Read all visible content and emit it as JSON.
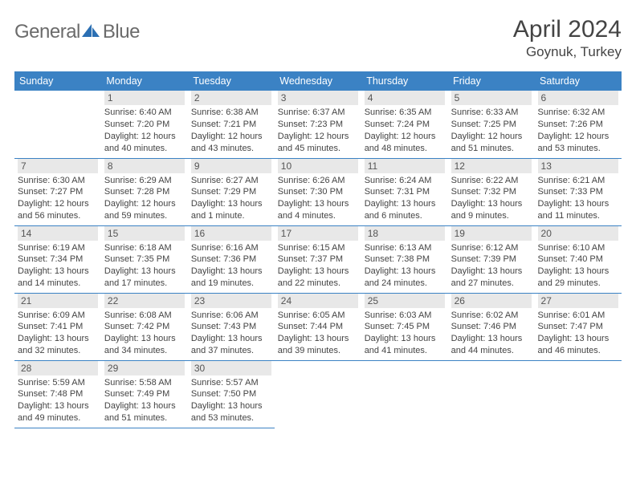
{
  "brand": {
    "word1": "General",
    "word2": "Blue",
    "accent_color": "#2b6fb3",
    "text_color": "#6b6b6b"
  },
  "title": {
    "month_year": "April 2024",
    "location": "Goynuk, Turkey",
    "color": "#444444"
  },
  "colors": {
    "header_bg": "#3b82c4",
    "header_fg": "#ffffff",
    "daybar_bg": "#e8e8e8",
    "daybar_fg": "#555555",
    "cell_border": "#3b82c4",
    "body_text": "#444444"
  },
  "weekdays": [
    "Sunday",
    "Monday",
    "Tuesday",
    "Wednesday",
    "Thursday",
    "Friday",
    "Saturday"
  ],
  "weeks": [
    [
      null,
      {
        "d": "1",
        "sr": "6:40 AM",
        "ss": "7:20 PM",
        "dl": "12 hours and 40 minutes."
      },
      {
        "d": "2",
        "sr": "6:38 AM",
        "ss": "7:21 PM",
        "dl": "12 hours and 43 minutes."
      },
      {
        "d": "3",
        "sr": "6:37 AM",
        "ss": "7:23 PM",
        "dl": "12 hours and 45 minutes."
      },
      {
        "d": "4",
        "sr": "6:35 AM",
        "ss": "7:24 PM",
        "dl": "12 hours and 48 minutes."
      },
      {
        "d": "5",
        "sr": "6:33 AM",
        "ss": "7:25 PM",
        "dl": "12 hours and 51 minutes."
      },
      {
        "d": "6",
        "sr": "6:32 AM",
        "ss": "7:26 PM",
        "dl": "12 hours and 53 minutes."
      }
    ],
    [
      {
        "d": "7",
        "sr": "6:30 AM",
        "ss": "7:27 PM",
        "dl": "12 hours and 56 minutes."
      },
      {
        "d": "8",
        "sr": "6:29 AM",
        "ss": "7:28 PM",
        "dl": "12 hours and 59 minutes."
      },
      {
        "d": "9",
        "sr": "6:27 AM",
        "ss": "7:29 PM",
        "dl": "13 hours and 1 minute."
      },
      {
        "d": "10",
        "sr": "6:26 AM",
        "ss": "7:30 PM",
        "dl": "13 hours and 4 minutes."
      },
      {
        "d": "11",
        "sr": "6:24 AM",
        "ss": "7:31 PM",
        "dl": "13 hours and 6 minutes."
      },
      {
        "d": "12",
        "sr": "6:22 AM",
        "ss": "7:32 PM",
        "dl": "13 hours and 9 minutes."
      },
      {
        "d": "13",
        "sr": "6:21 AM",
        "ss": "7:33 PM",
        "dl": "13 hours and 11 minutes."
      }
    ],
    [
      {
        "d": "14",
        "sr": "6:19 AM",
        "ss": "7:34 PM",
        "dl": "13 hours and 14 minutes."
      },
      {
        "d": "15",
        "sr": "6:18 AM",
        "ss": "7:35 PM",
        "dl": "13 hours and 17 minutes."
      },
      {
        "d": "16",
        "sr": "6:16 AM",
        "ss": "7:36 PM",
        "dl": "13 hours and 19 minutes."
      },
      {
        "d": "17",
        "sr": "6:15 AM",
        "ss": "7:37 PM",
        "dl": "13 hours and 22 minutes."
      },
      {
        "d": "18",
        "sr": "6:13 AM",
        "ss": "7:38 PM",
        "dl": "13 hours and 24 minutes."
      },
      {
        "d": "19",
        "sr": "6:12 AM",
        "ss": "7:39 PM",
        "dl": "13 hours and 27 minutes."
      },
      {
        "d": "20",
        "sr": "6:10 AM",
        "ss": "7:40 PM",
        "dl": "13 hours and 29 minutes."
      }
    ],
    [
      {
        "d": "21",
        "sr": "6:09 AM",
        "ss": "7:41 PM",
        "dl": "13 hours and 32 minutes."
      },
      {
        "d": "22",
        "sr": "6:08 AM",
        "ss": "7:42 PM",
        "dl": "13 hours and 34 minutes."
      },
      {
        "d": "23",
        "sr": "6:06 AM",
        "ss": "7:43 PM",
        "dl": "13 hours and 37 minutes."
      },
      {
        "d": "24",
        "sr": "6:05 AM",
        "ss": "7:44 PM",
        "dl": "13 hours and 39 minutes."
      },
      {
        "d": "25",
        "sr": "6:03 AM",
        "ss": "7:45 PM",
        "dl": "13 hours and 41 minutes."
      },
      {
        "d": "26",
        "sr": "6:02 AM",
        "ss": "7:46 PM",
        "dl": "13 hours and 44 minutes."
      },
      {
        "d": "27",
        "sr": "6:01 AM",
        "ss": "7:47 PM",
        "dl": "13 hours and 46 minutes."
      }
    ],
    [
      {
        "d": "28",
        "sr": "5:59 AM",
        "ss": "7:48 PM",
        "dl": "13 hours and 49 minutes."
      },
      {
        "d": "29",
        "sr": "5:58 AM",
        "ss": "7:49 PM",
        "dl": "13 hours and 51 minutes."
      },
      {
        "d": "30",
        "sr": "5:57 AM",
        "ss": "7:50 PM",
        "dl": "13 hours and 53 minutes."
      },
      null,
      null,
      null,
      null
    ]
  ],
  "labels": {
    "sunrise": "Sunrise:",
    "sunset": "Sunset:",
    "daylight": "Daylight:"
  }
}
